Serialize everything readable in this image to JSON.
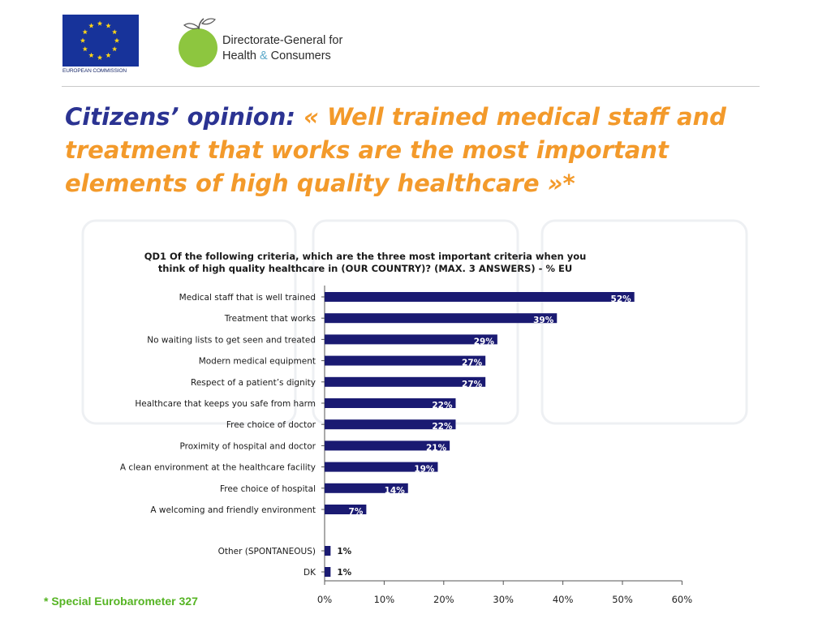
{
  "header": {
    "commission_label": "EUROPEAN COMMISSION",
    "dg_line1": "Directorate-General for",
    "dg_line2_a": "Health",
    "dg_line2_amp": "&",
    "dg_line2_b": "Consumers"
  },
  "slide": {
    "title_lead": "Citizens’ opinion:",
    "title_quote": "« Well trained medical staff and treatment that works are the most important elements of high quality healthcare »*"
  },
  "footnote": "* Special Eurobarometer 327",
  "colors": {
    "bar": "#1a1a72",
    "title_orange": "#f39a2b",
    "title_blue": "#2b3392",
    "footnote_green": "#55b423"
  },
  "chart_data": {
    "type": "bar",
    "orientation": "horizontal",
    "title_line1": "QD1 Of the following criteria, which are the three most important criteria when you",
    "title_line2": "think of high quality healthcare in (OUR COUNTRY)? (MAX. 3 ANSWERS) - % EU",
    "categories": [
      "Medical staff that is well trained",
      "Treatment that works",
      "No waiting lists to get seen and treated",
      "Modern medical equipment",
      "Respect of a patient’s dignity",
      "Healthcare that keeps you safe from harm",
      "Free choice of doctor",
      "Proximity of hospital and doctor",
      "A clean environment at the healthcare facility",
      "Free choice of hospital",
      "A welcoming and friendly environment",
      "Other (SPONTANEOUS)",
      "DK"
    ],
    "values": [
      52,
      39,
      29,
      27,
      27,
      22,
      22,
      21,
      19,
      14,
      7,
      1,
      1
    ],
    "value_labels": [
      "52%",
      "39%",
      "29%",
      "27%",
      "27%",
      "22%",
      "22%",
      "21%",
      "19%",
      "14%",
      "7%",
      "1%",
      "1%"
    ],
    "x_ticks": [
      "0%",
      "10%",
      "20%",
      "30%",
      "40%",
      "50%",
      "60%"
    ],
    "xlim": [
      0,
      60
    ],
    "grid": false,
    "legend": "none"
  }
}
